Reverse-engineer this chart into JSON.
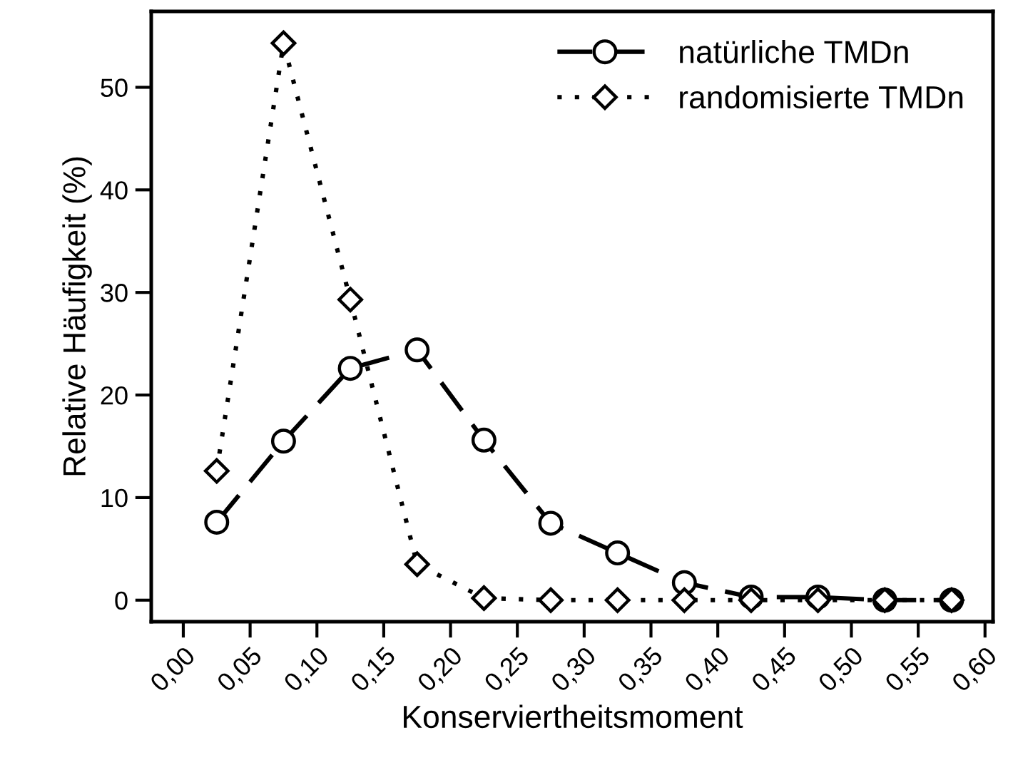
{
  "chart_data": {
    "type": "line",
    "xlabel": "Konserviertheitsmoment",
    "ylabel": "Relative Häufigkeit (%)",
    "x": [
      0.025,
      0.075,
      0.125,
      0.175,
      0.225,
      0.275,
      0.325,
      0.375,
      0.425,
      0.475,
      0.525,
      0.575
    ],
    "series": [
      {
        "name": "natürliche TMDn",
        "color": "#000000",
        "marker": "circle",
        "line_style": "dashed",
        "values": [
          7.6,
          15.5,
          22.6,
          24.4,
          15.6,
          7.5,
          4.6,
          1.7,
          0.3,
          0.3,
          0.0,
          0.0
        ]
      },
      {
        "name": "randomisierte TMDn",
        "color": "#000000",
        "marker": "diamond",
        "line_style": "dotted",
        "values": [
          12.6,
          54.3,
          29.3,
          3.5,
          0.2,
          0.0,
          0.0,
          0.0,
          0.0,
          0.0,
          0.0,
          0.0
        ]
      }
    ],
    "xlim": [
      -0.024,
      0.606
    ],
    "ylim": [
      -2.1,
      57.4
    ],
    "xticks": [
      {
        "value": 0.0,
        "label": "0,00"
      },
      {
        "value": 0.05,
        "label": "0,05"
      },
      {
        "value": 0.1,
        "label": "0,10"
      },
      {
        "value": 0.15,
        "label": "0,15"
      },
      {
        "value": 0.2,
        "label": "0,20"
      },
      {
        "value": 0.25,
        "label": "0,25"
      },
      {
        "value": 0.3,
        "label": "0,30"
      },
      {
        "value": 0.35,
        "label": "0,35"
      },
      {
        "value": 0.4,
        "label": "0,40"
      },
      {
        "value": 0.45,
        "label": "0,45"
      },
      {
        "value": 0.5,
        "label": "0,50"
      },
      {
        "value": 0.55,
        "label": "0,55"
      },
      {
        "value": 0.6,
        "label": "0,60"
      }
    ],
    "yticks": [
      0,
      10,
      20,
      30,
      40,
      50
    ],
    "grid": false,
    "legend": "top right"
  }
}
